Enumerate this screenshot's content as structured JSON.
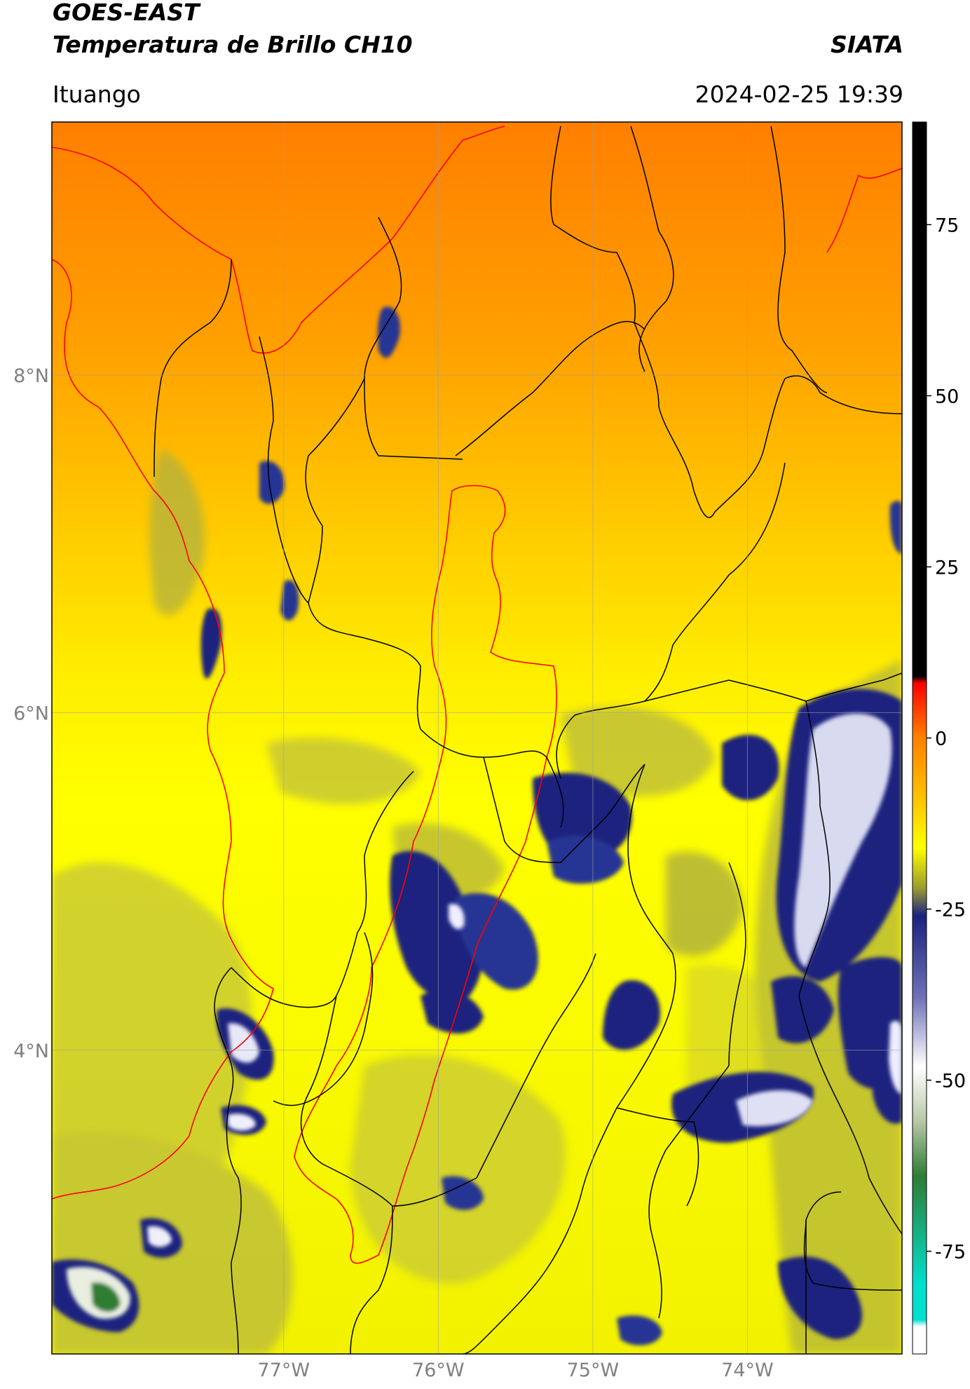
{
  "header": {
    "satellite": "GOES-EAST",
    "product": "Temperatura de Brillo CH10",
    "agency": "SIATA",
    "location": "Ituango",
    "datetime": "2024-02-25 19:39"
  },
  "map": {
    "lon_range": [
      -78.5,
      -73.0
    ],
    "lat_range": [
      2.2,
      9.5
    ],
    "lon_ticks": [
      {
        "value": -77,
        "label": "77°W"
      },
      {
        "value": -76,
        "label": "76°W"
      },
      {
        "value": -75,
        "label": "75°W"
      },
      {
        "value": -74,
        "label": "74°W"
      }
    ],
    "lat_ticks": [
      {
        "value": 8,
        "label": "8°N"
      },
      {
        "value": 6,
        "label": "6°N"
      },
      {
        "value": 4,
        "label": "4°N"
      }
    ],
    "gridlines": true,
    "colors": {
      "warm": "#ff8c00",
      "yellow": "#ffff00",
      "olive": "#c8c832",
      "cold_blue": "#1a237e",
      "very_cold": "#e8e8f8",
      "coastline": "#ff0000",
      "borders": "#000000"
    }
  },
  "colorbar": {
    "range": [
      -90,
      90
    ],
    "ticks": [
      {
        "value": 75,
        "label": "75"
      },
      {
        "value": 50,
        "label": "50"
      },
      {
        "value": 25,
        "label": "25"
      },
      {
        "value": 0,
        "label": "0"
      },
      {
        "value": -25,
        "label": "-25"
      },
      {
        "value": -50,
        "label": "-50"
      },
      {
        "value": -75,
        "label": "-75"
      }
    ],
    "stops": [
      {
        "value": 90,
        "color": "#000000"
      },
      {
        "value": 9,
        "color": "#000000"
      },
      {
        "value": 8,
        "color": "#ff0000"
      },
      {
        "value": 0,
        "color": "#ff8000"
      },
      {
        "value": -10,
        "color": "#ffcc00"
      },
      {
        "value": -16,
        "color": "#ffff00"
      },
      {
        "value": -22,
        "color": "#9a9a30"
      },
      {
        "value": -26,
        "color": "#1a237e"
      },
      {
        "value": -38,
        "color": "#6f72b8"
      },
      {
        "value": -48,
        "color": "#ffffff"
      },
      {
        "value": -56,
        "color": "#b8c8a8"
      },
      {
        "value": -64,
        "color": "#2e7d32"
      },
      {
        "value": -80,
        "color": "#00e0d0"
      },
      {
        "value": -85,
        "color": "#00e0d0"
      },
      {
        "value": -86,
        "color": "#ffffff"
      },
      {
        "value": -90,
        "color": "#ffffff"
      }
    ]
  }
}
